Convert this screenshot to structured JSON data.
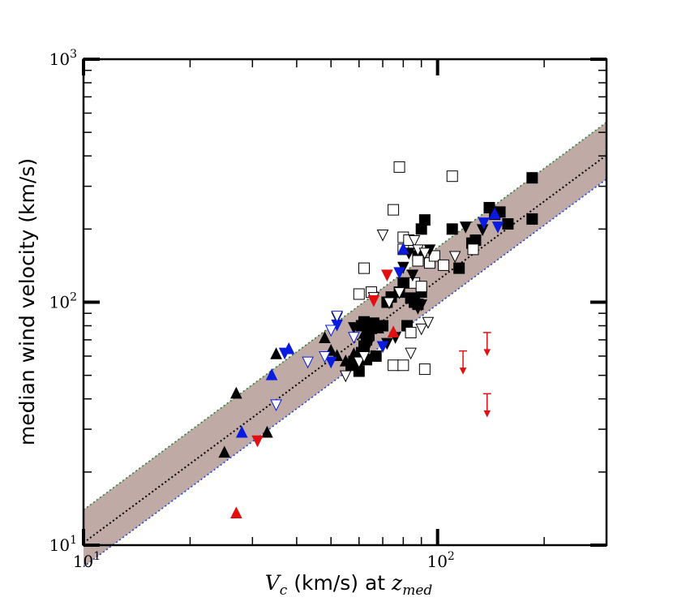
{
  "chart_data": {
    "type": "scatter",
    "title": "",
    "xlabel": {
      "var": "V",
      "var_sub": "c",
      "text": " (km/s) at ",
      "var2": "z",
      "var2_sub": "med"
    },
    "ylabel": "median wind velocity (km/s)",
    "xscale": "log",
    "yscale": "log",
    "xlim": [
      10,
      300
    ],
    "ylim": [
      10,
      1000
    ],
    "x_ticks": [
      {
        "value": 10,
        "base": "10",
        "exp": "1"
      },
      {
        "value": 100,
        "base": "10",
        "exp": "2"
      }
    ],
    "y_ticks": [
      {
        "value": 10,
        "base": "10",
        "exp": "1"
      },
      {
        "value": 100,
        "base": "10",
        "exp": "2"
      },
      {
        "value": 1000,
        "base": "10",
        "exp": "3"
      }
    ],
    "band": {
      "center": {
        "slope": 1.08,
        "pivot_x": 100,
        "pivot_y": 123,
        "style": "dotted",
        "color": "#000000"
      },
      "upper": {
        "slope": 1.08,
        "pivot_x": 100,
        "pivot_y": 168,
        "style": "dotted",
        "color": "#2e7d32"
      },
      "lower": {
        "slope": 1.08,
        "pivot_x": 100,
        "pivot_y": 98,
        "style": "dotted",
        "color": "#1f3fd6"
      },
      "fill": "#bfaaa6"
    },
    "colors": {
      "black": "#000000",
      "blue": "#0a1be0",
      "red": "#e01010"
    },
    "series": [
      {
        "name": "filled squares",
        "marker": "square",
        "fill": "black",
        "color": "black",
        "points": [
          [
            57,
            55
          ],
          [
            58,
            57
          ],
          [
            60,
            52
          ],
          [
            61,
            62
          ],
          [
            62,
            66
          ],
          [
            63,
            70
          ],
          [
            64,
            73
          ],
          [
            65,
            78
          ],
          [
            66,
            82
          ],
          [
            67,
            60
          ],
          [
            63,
            58
          ],
          [
            61,
            80
          ],
          [
            62,
            83
          ],
          [
            70,
            80
          ],
          [
            72,
            100
          ],
          [
            74,
            105
          ],
          [
            78,
            110
          ],
          [
            80,
            120
          ],
          [
            82,
            80
          ],
          [
            84,
            104
          ],
          [
            86,
            100
          ],
          [
            88,
            98
          ],
          [
            90,
            110
          ],
          [
            88,
            155
          ],
          [
            90,
            200
          ],
          [
            92,
            218
          ],
          [
            110,
            200
          ],
          [
            115,
            138
          ],
          [
            125,
            175
          ],
          [
            128,
            180
          ],
          [
            140,
            245
          ],
          [
            145,
            230
          ],
          [
            150,
            235
          ],
          [
            158,
            210
          ],
          [
            185,
            325
          ],
          [
            185,
            220
          ]
        ]
      },
      {
        "name": "open squares",
        "marker": "square",
        "fill": "none",
        "color": "black",
        "points": [
          [
            60,
            108
          ],
          [
            62,
            138
          ],
          [
            65,
            110
          ],
          [
            75,
            240
          ],
          [
            78,
            360
          ],
          [
            80,
            185
          ],
          [
            80,
            165
          ],
          [
            83,
            180
          ],
          [
            86,
            120
          ],
          [
            88,
            148
          ],
          [
            90,
            116
          ],
          [
            92,
            53
          ],
          [
            95,
            145
          ],
          [
            98,
            155
          ],
          [
            104,
            142
          ],
          [
            110,
            330
          ],
          [
            126,
            165
          ],
          [
            75,
            55
          ],
          [
            80,
            55
          ],
          [
            84,
            75
          ]
        ]
      },
      {
        "name": "filled triangles up",
        "marker": "tri-up",
        "fill": "black",
        "color": "black",
        "points": [
          [
            25,
            24
          ],
          [
            27,
            42
          ],
          [
            33,
            29
          ],
          [
            35,
            61
          ],
          [
            48,
            71
          ],
          [
            50,
            63
          ],
          [
            52,
            60
          ],
          [
            55,
            57
          ],
          [
            58,
            61
          ],
          [
            60,
            55
          ],
          [
            62,
            74
          ],
          [
            68,
            78
          ]
        ]
      },
      {
        "name": "filled triangles down",
        "marker": "tri-down",
        "fill": "black",
        "color": "black",
        "points": [
          [
            52,
            87
          ],
          [
            58,
            79
          ],
          [
            64,
            68
          ],
          [
            72,
            68
          ],
          [
            76,
            72
          ],
          [
            80,
            140
          ],
          [
            83,
            160
          ],
          [
            85,
            130
          ],
          [
            88,
            95
          ],
          [
            90,
            98
          ],
          [
            95,
            165
          ],
          [
            120,
            205
          ],
          [
            134,
            200
          ]
        ]
      },
      {
        "name": "open triangles down",
        "marker": "tri-down",
        "fill": "none",
        "color": "black",
        "points": [
          [
            55,
            50
          ],
          [
            60,
            57
          ],
          [
            62,
            60
          ],
          [
            66,
            105
          ],
          [
            70,
            190
          ],
          [
            73,
            100
          ],
          [
            78,
            110
          ],
          [
            84,
            62
          ],
          [
            86,
            180
          ],
          [
            88,
            165
          ],
          [
            90,
            78
          ],
          [
            92,
            160
          ],
          [
            94,
            83
          ],
          [
            112,
            155
          ]
        ]
      },
      {
        "name": "blue filled triangles up",
        "marker": "tri-up",
        "fill": "blue",
        "color": "blue",
        "points": [
          [
            28,
            29
          ],
          [
            34,
            50
          ],
          [
            38,
            64
          ],
          [
            80,
            165
          ],
          [
            145,
            230
          ]
        ]
      },
      {
        "name": "blue filled triangles down",
        "marker": "tri-down",
        "fill": "blue",
        "color": "blue",
        "points": [
          [
            37,
            62
          ],
          [
            50,
            57
          ],
          [
            52,
            81
          ],
          [
            70,
            66
          ],
          [
            78,
            133
          ],
          [
            135,
            213
          ],
          [
            148,
            205
          ]
        ]
      },
      {
        "name": "blue open triangles down",
        "marker": "tri-down",
        "fill": "none",
        "color": "blue",
        "points": [
          [
            35,
            38
          ],
          [
            43,
            57
          ],
          [
            48,
            60
          ],
          [
            50,
            77
          ],
          [
            52,
            88
          ],
          [
            58,
            72
          ]
        ]
      },
      {
        "name": "red filled triangles up",
        "marker": "tri-up",
        "fill": "red",
        "color": "red",
        "points": [
          [
            27,
            13.5
          ],
          [
            75,
            75
          ]
        ]
      },
      {
        "name": "red filled triangles down",
        "marker": "tri-down",
        "fill": "red",
        "color": "red",
        "points": [
          [
            31,
            27
          ],
          [
            66,
            102
          ],
          [
            72,
            130
          ]
        ]
      },
      {
        "name": "red upper limits",
        "marker": "upper-limit",
        "fill": "red",
        "color": "red",
        "points": [
          [
            118,
            63
          ],
          [
            138,
            75
          ],
          [
            138,
            42
          ]
        ]
      }
    ]
  }
}
